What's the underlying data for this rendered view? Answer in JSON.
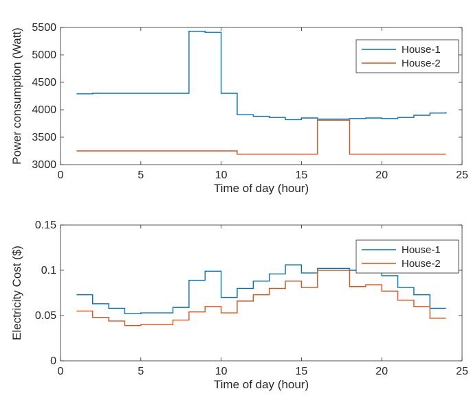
{
  "chart_data": [
    {
      "type": "line",
      "step": true,
      "xlabel": "Time of day (hour)",
      "ylabel": "Power consumption (Watt)",
      "xlim": [
        0,
        25
      ],
      "ylim": [
        3000,
        5500
      ],
      "xticks": [
        0,
        5,
        10,
        15,
        20,
        25
      ],
      "yticks": [
        3000,
        3500,
        4000,
        4500,
        5000,
        5500
      ],
      "xtick_labels": [
        "0",
        "5",
        "10",
        "15",
        "20",
        "25"
      ],
      "ytick_labels": [
        "3000",
        "3500",
        "4000",
        "4500",
        "5000",
        "5500"
      ],
      "grid": false,
      "legend_position": "top-right",
      "x": [
        1,
        2,
        3,
        4,
        5,
        6,
        7,
        8,
        9,
        10,
        11,
        12,
        13,
        14,
        15,
        16,
        17,
        18,
        19,
        20,
        21,
        22,
        23,
        24
      ],
      "series": [
        {
          "name": "House-1",
          "color": "#0072BD",
          "values": [
            4290,
            4300,
            4300,
            4300,
            4300,
            4300,
            4300,
            5430,
            5410,
            4300,
            3910,
            3880,
            3860,
            3820,
            3850,
            3830,
            3830,
            3840,
            3850,
            3840,
            3860,
            3900,
            3940,
            3960
          ]
        },
        {
          "name": "House-2",
          "color": "#D95319",
          "values": [
            3250,
            3250,
            3250,
            3250,
            3250,
            3250,
            3250,
            3250,
            3250,
            3250,
            3190,
            3190,
            3190,
            3190,
            3190,
            3810,
            3810,
            3190,
            3190,
            3190,
            3190,
            3190,
            3190,
            3190
          ]
        }
      ]
    },
    {
      "type": "line",
      "step": true,
      "xlabel": "Time of day (hour)",
      "ylabel": "Electricity Cost ($)",
      "xlim": [
        0,
        25
      ],
      "ylim": [
        0,
        0.15
      ],
      "xticks": [
        0,
        5,
        10,
        15,
        20,
        25
      ],
      "yticks": [
        0,
        0.05,
        0.1,
        0.15
      ],
      "xtick_labels": [
        "0",
        "5",
        "10",
        "15",
        "20",
        "25"
      ],
      "ytick_labels": [
        "0",
        "0.05",
        "0.1",
        "0.15"
      ],
      "grid": false,
      "legend_position": "top-right",
      "x": [
        1,
        2,
        3,
        4,
        5,
        6,
        7,
        8,
        9,
        10,
        11,
        12,
        13,
        14,
        15,
        16,
        17,
        18,
        19,
        20,
        21,
        22,
        23,
        24
      ],
      "series": [
        {
          "name": "House-1",
          "color": "#0072BD",
          "values": [
            0.073,
            0.063,
            0.058,
            0.052,
            0.053,
            0.053,
            0.059,
            0.089,
            0.099,
            0.07,
            0.08,
            0.088,
            0.096,
            0.106,
            0.097,
            0.102,
            0.102,
            0.1,
            0.099,
            0.094,
            0.081,
            0.073,
            0.058,
            0.058
          ]
        },
        {
          "name": "House-2",
          "color": "#D95319",
          "values": [
            0.055,
            0.048,
            0.044,
            0.039,
            0.04,
            0.04,
            0.045,
            0.054,
            0.06,
            0.053,
            0.066,
            0.073,
            0.08,
            0.088,
            0.081,
            0.1,
            0.1,
            0.082,
            0.084,
            0.077,
            0.067,
            0.06,
            0.047,
            0.047
          ]
        }
      ]
    }
  ]
}
